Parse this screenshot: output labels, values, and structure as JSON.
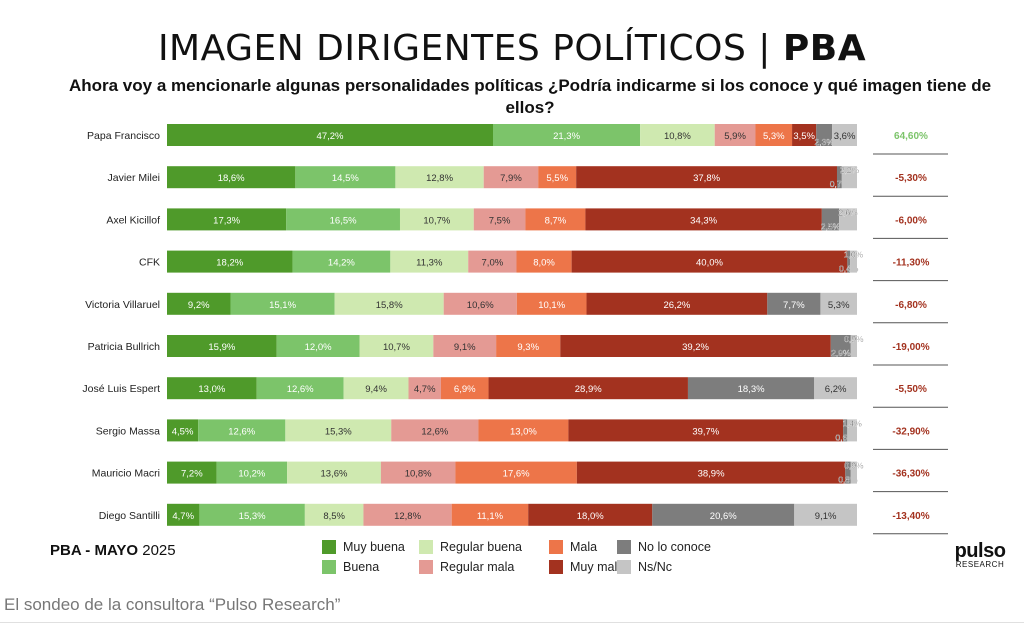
{
  "header": {
    "title_main": "IMAGEN DIRIGENTES POLÍTICOS | ",
    "title_bold": "PBA",
    "subtitle": "Ahora voy a mencionarle algunas personalidades políticas ¿Podría indicarme si los conoce y qué imagen tiene de ellos?"
  },
  "colors": {
    "muy_buena": "#4f9a2a",
    "buena": "#7cc46a",
    "regular_buena": "#cfe9b0",
    "regular_mala": "#e49a94",
    "mala": "#ed7549",
    "muy_mala": "#a3321f",
    "no_lo_conoce": "#7d7d7d",
    "ns_nc": "#c5c5c5",
    "diff_positive": "#7cc46a",
    "diff_negative": "#a3321f"
  },
  "chart_data": {
    "type": "bar",
    "orientation": "horizontal",
    "stacked": true,
    "categories": [
      "Papa Francisco",
      "Javier Milei",
      "Axel Kicillof",
      "CFK",
      "Victoria Villaruel",
      "Patricia Bullrich",
      "José Luis Espert",
      "Sergio Massa",
      "Mauricio Macri",
      "Diego Santilli"
    ],
    "series": [
      {
        "name": "Muy buena",
        "values": [
          47.2,
          18.6,
          17.3,
          18.2,
          9.2,
          15.9,
          13.0,
          4.5,
          7.2,
          4.7
        ],
        "labels": [
          "47,2%",
          "18,6%",
          "17,3%",
          "18,2%",
          "9,2%",
          "15,9%",
          "13,0%",
          "4,5%",
          "7,2%",
          "4,7%"
        ]
      },
      {
        "name": "Buena",
        "values": [
          21.3,
          14.5,
          16.5,
          14.2,
          15.1,
          12.0,
          12.6,
          12.6,
          10.2,
          15.3
        ],
        "labels": [
          "21,3%",
          "14,5%",
          "16,5%",
          "14,2%",
          "15,1%",
          "12,0%",
          "12,6%",
          "12,6%",
          "10,2%",
          "15,3%"
        ]
      },
      {
        "name": "Regular buena",
        "values": [
          10.8,
          12.8,
          10.7,
          11.3,
          15.8,
          10.7,
          9.4,
          15.3,
          13.6,
          8.5
        ],
        "labels": [
          "10,8%",
          "12,8%",
          "10,7%",
          "11,3%",
          "15,8%",
          "10,7%",
          "9,4%",
          "15,3%",
          "13,6%",
          "8,5%"
        ]
      },
      {
        "name": "Regular mala",
        "values": [
          5.9,
          7.9,
          7.5,
          7.0,
          10.6,
          9.1,
          4.7,
          12.6,
          10.8,
          12.8
        ],
        "labels": [
          "5,9%",
          "7,9%",
          "7,5%",
          "7,0%",
          "10,6%",
          "9,1%",
          "4,7%",
          "12,6%",
          "10,8%",
          "12,8%"
        ]
      },
      {
        "name": "Mala",
        "values": [
          5.3,
          5.5,
          8.7,
          8.0,
          10.1,
          9.3,
          6.9,
          13.0,
          17.6,
          11.1
        ],
        "labels": [
          "5,3%",
          "5,5%",
          "8,7%",
          "8,0%",
          "10,1%",
          "9,3%",
          "6,9%",
          "13,0%",
          "17,6%",
          "11,1%"
        ]
      },
      {
        "name": "Muy mala",
        "values": [
          3.5,
          37.8,
          34.3,
          40.0,
          26.2,
          39.2,
          28.9,
          39.7,
          38.9,
          18.0
        ],
        "labels": [
          "3,5%",
          "37,8%",
          "34,3%",
          "40,0%",
          "26,2%",
          "39,2%",
          "28,9%",
          "39,7%",
          "38,9%",
          "18,0%"
        ]
      },
      {
        "name": "No lo conoce",
        "values": [
          2.3,
          0.7,
          2.5,
          0.4,
          7.7,
          2.9,
          18.3,
          0.6,
          0.8,
          20.6
        ],
        "labels": [
          "2,3%",
          "0,7%",
          "2,5%",
          "0,4%",
          "7,7%",
          "2,9%",
          "18,3%",
          "0,6%",
          "0,8%",
          "20,6%"
        ]
      },
      {
        "name": "Ns/Nc",
        "values": [
          3.6,
          2.2,
          2.6,
          1.0,
          5.3,
          0.9,
          6.2,
          1.4,
          0.9,
          9.1
        ],
        "labels": [
          "3,6%",
          "2,2%",
          "2,6%",
          "1,0%",
          "5,3%",
          "0,9%",
          "6,2%",
          "1,4%",
          "0,9%",
          "9,1%"
        ]
      }
    ],
    "diferencial": [
      64.6,
      -5.3,
      -6.0,
      -11.3,
      -6.8,
      -19.0,
      -5.5,
      -32.9,
      -36.3,
      -13.4
    ],
    "diferencial_labels": [
      "64,60%",
      "-5,30%",
      "-6,00%",
      "-11,30%",
      "-6,80%",
      "-19,00%",
      "-5,50%",
      "-32,90%",
      "-36,30%",
      "-13,40%"
    ],
    "xlim": [
      0,
      100
    ],
    "legend_position": "bottom"
  },
  "footer": {
    "region": "PBA -  MAYO",
    "year": "2025",
    "logo_text": "pulso",
    "logo_sub": "RESEARCH"
  },
  "caption": "El sondeo de la consultora “Pulso Research”"
}
